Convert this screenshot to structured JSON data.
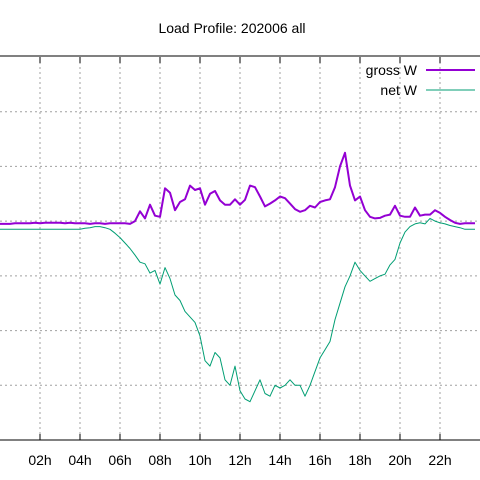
{
  "chart_data": {
    "type": "line",
    "title": "Load Profile: 202006 all",
    "xlabel": "",
    "ylabel": "",
    "x_tick_labels": [
      "02h",
      "04h",
      "06h",
      "08h",
      "10h",
      "12h",
      "14h",
      "16h",
      "18h",
      "20h",
      "22h"
    ],
    "x_ticks": [
      2,
      4,
      6,
      8,
      10,
      12,
      14,
      16,
      18,
      20,
      22
    ],
    "xlim": [
      0,
      24
    ],
    "ylim": [
      -400,
      300
    ],
    "grid": true,
    "legend_position": "top-right",
    "series": [
      {
        "name": "gross W",
        "color": "#9400d3",
        "x": [
          0,
          0.25,
          0.5,
          0.75,
          1,
          1.25,
          1.5,
          1.75,
          2,
          2.25,
          2.5,
          2.75,
          3,
          3.25,
          3.5,
          3.75,
          4,
          4.25,
          4.5,
          4.75,
          5,
          5.25,
          5.5,
          5.75,
          6,
          6.25,
          6.5,
          6.75,
          7,
          7.25,
          7.5,
          7.75,
          8,
          8.25,
          8.5,
          8.75,
          9,
          9.25,
          9.5,
          9.75,
          10,
          10.25,
          10.5,
          10.75,
          11,
          11.25,
          11.5,
          11.75,
          12,
          12.25,
          12.5,
          12.75,
          13,
          13.25,
          13.5,
          13.75,
          14,
          14.25,
          14.5,
          14.75,
          15,
          15.25,
          15.5,
          15.75,
          16,
          16.25,
          16.5,
          16.75,
          17,
          17.25,
          17.5,
          17.75,
          18,
          18.25,
          18.5,
          18.75,
          19,
          19.25,
          19.5,
          19.75,
          20,
          20.25,
          20.5,
          20.75,
          21,
          21.25,
          21.5,
          21.75,
          22,
          22.25,
          22.5,
          22.75,
          23,
          23.25,
          23.5,
          23.75
        ],
        "values": [
          -5,
          -5,
          -5,
          -4,
          -4,
          -4,
          -4,
          -3,
          -4,
          -3,
          -3,
          -3,
          -3,
          -4,
          -3,
          -4,
          -4,
          -4,
          -5,
          -4,
          -4,
          -5,
          -4,
          -4,
          -4,
          -4,
          -5,
          0,
          18,
          5,
          30,
          10,
          8,
          60,
          52,
          20,
          35,
          40,
          65,
          57,
          60,
          30,
          50,
          55,
          38,
          30,
          30,
          40,
          30,
          39,
          65,
          62,
          45,
          27,
          32,
          38,
          45,
          42,
          32,
          22,
          17,
          20,
          28,
          25,
          35,
          38,
          40,
          62,
          100,
          125,
          65,
          38,
          45,
          20,
          8,
          5,
          6,
          10,
          12,
          28,
          10,
          8,
          8,
          25,
          10,
          12,
          12,
          20,
          15,
          8,
          2,
          -3,
          -5,
          -4,
          -4,
          -4
        ]
      },
      {
        "name": "net W",
        "color": "#009e73",
        "x": [
          0,
          0.25,
          0.5,
          0.75,
          1,
          1.25,
          1.5,
          1.75,
          2,
          2.25,
          2.5,
          2.75,
          3,
          3.25,
          3.5,
          3.75,
          4,
          4.25,
          4.5,
          4.75,
          5,
          5.25,
          5.5,
          5.75,
          6,
          6.25,
          6.5,
          6.75,
          7,
          7.25,
          7.5,
          7.75,
          8,
          8.25,
          8.5,
          8.75,
          9,
          9.25,
          9.5,
          9.75,
          10,
          10.25,
          10.5,
          10.75,
          11,
          11.25,
          11.5,
          11.75,
          12,
          12.25,
          12.5,
          12.75,
          13,
          13.25,
          13.5,
          13.75,
          14,
          14.25,
          14.5,
          14.75,
          15,
          15.25,
          15.5,
          15.75,
          16,
          16.25,
          16.5,
          16.75,
          17,
          17.25,
          17.5,
          17.75,
          18,
          18.25,
          18.5,
          18.75,
          19,
          19.25,
          19.5,
          19.75,
          20,
          20.25,
          20.5,
          20.75,
          21,
          21.25,
          21.5,
          21.75,
          22,
          22.25,
          22.5,
          22.75,
          23,
          23.25,
          23.5,
          23.75
        ],
        "values": [
          -15,
          -15,
          -15,
          -15,
          -15,
          -15,
          -15,
          -15,
          -15,
          -15,
          -15,
          -15,
          -15,
          -15,
          -15,
          -15,
          -15,
          -13,
          -12,
          -10,
          -10,
          -12,
          -15,
          -22,
          -30,
          -40,
          -50,
          -62,
          -75,
          -78,
          -95,
          -90,
          -115,
          -85,
          -105,
          -135,
          -145,
          -165,
          -175,
          -185,
          -210,
          -255,
          -265,
          -240,
          -250,
          -290,
          -300,
          -265,
          -310,
          -325,
          -330,
          -310,
          -290,
          -315,
          -320,
          -300,
          -305,
          -300,
          -290,
          -300,
          -300,
          -320,
          -300,
          -275,
          -250,
          -235,
          -220,
          -180,
          -150,
          -120,
          -100,
          -75,
          -90,
          -100,
          -110,
          -105,
          -100,
          -97,
          -80,
          -70,
          -40,
          -20,
          -10,
          -5,
          -3,
          -5,
          5,
          0,
          -3,
          -5,
          -8,
          -10,
          -12,
          -15,
          -15,
          -15
        ]
      }
    ]
  }
}
